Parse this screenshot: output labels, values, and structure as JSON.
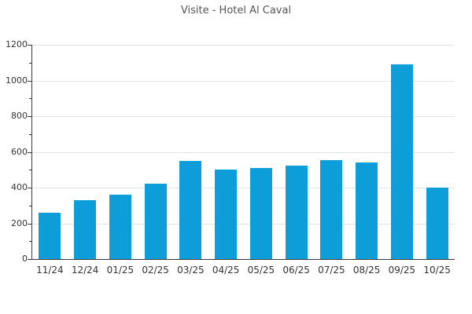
{
  "title": "Visite - Hotel Al Caval",
  "colors": {
    "bar": "#0d9dd9",
    "axis": "#3a3a3a",
    "grid": "#e2e2e2",
    "title_text": "#555555",
    "tick_text": "#333333",
    "background": "#ffffff"
  },
  "chart_data": {
    "type": "bar",
    "title": "Visite - Hotel Al Caval",
    "categories": [
      "11/24",
      "12/24",
      "01/25",
      "02/25",
      "03/25",
      "04/25",
      "05/25",
      "06/25",
      "07/25",
      "08/25",
      "09/25",
      "10/25"
    ],
    "values": [
      260,
      330,
      360,
      420,
      550,
      500,
      510,
      525,
      555,
      540,
      1090,
      400
    ],
    "xlabel": "",
    "ylabel": "",
    "ylim": [
      0,
      1200
    ],
    "ytick_step": 200,
    "yminor_step": 100,
    "ytick_labels": [
      "0",
      "200",
      "400",
      "600",
      "800",
      "1000",
      "1200"
    ],
    "grid": "horizontal-major",
    "legend": "none",
    "bar_color": "#0d9dd9"
  }
}
